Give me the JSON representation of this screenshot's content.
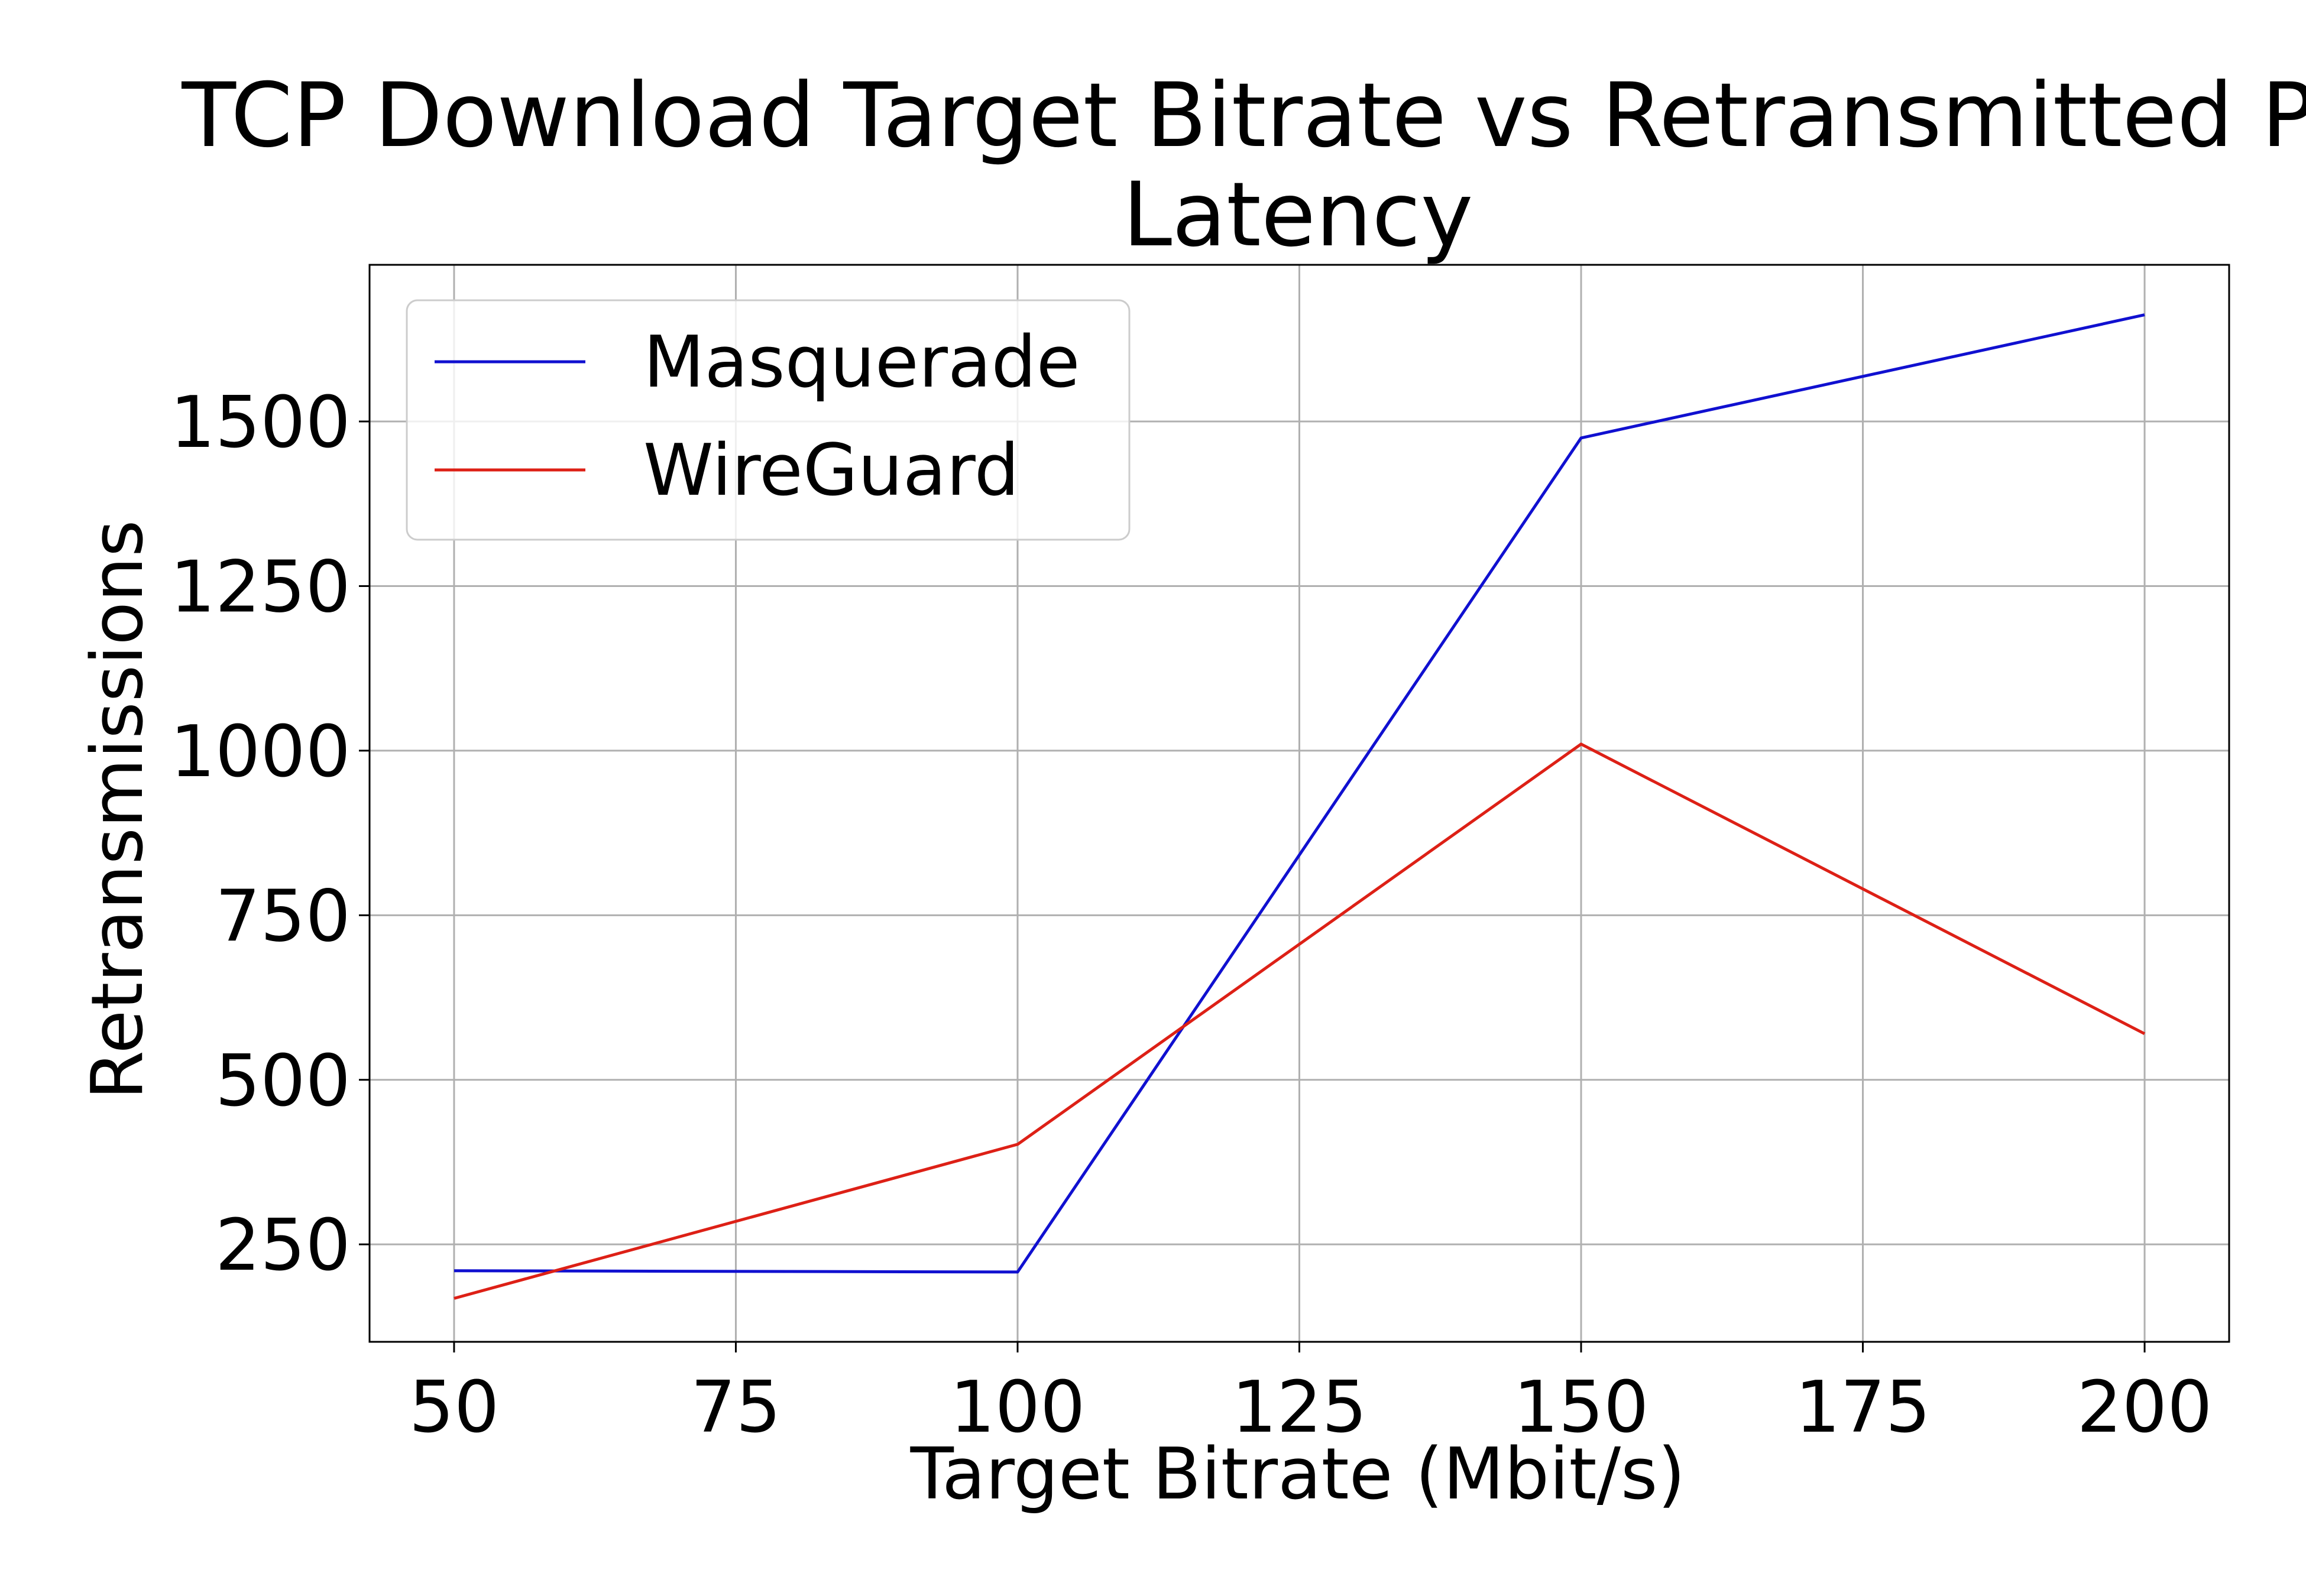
{
  "chart_data": {
    "type": "line",
    "title_lines": [
      "TCP Download Target Bitrate vs Retransmitted Pac",
      "Latency"
    ],
    "xlabel": "Target Bitrate (Mbit/s)",
    "ylabel": "Retransmissions",
    "x": [
      50,
      100,
      150,
      200
    ],
    "xlim": [
      42.5,
      207.5
    ],
    "ylim": [
      102,
      1738
    ],
    "xticks": [
      50,
      75,
      100,
      125,
      150,
      175,
      200
    ],
    "yticks": [
      250,
      500,
      750,
      1000,
      1250,
      1500
    ],
    "grid": true,
    "legend_position": "upper-left",
    "series": [
      {
        "name": "Masquerade",
        "color": "#1010d0",
        "values": [
          210,
          208,
          1475,
          1662
        ]
      },
      {
        "name": "WireGuard",
        "color": "#dd2016",
        "values": [
          168,
          402,
          1010,
          570
        ]
      }
    ]
  }
}
